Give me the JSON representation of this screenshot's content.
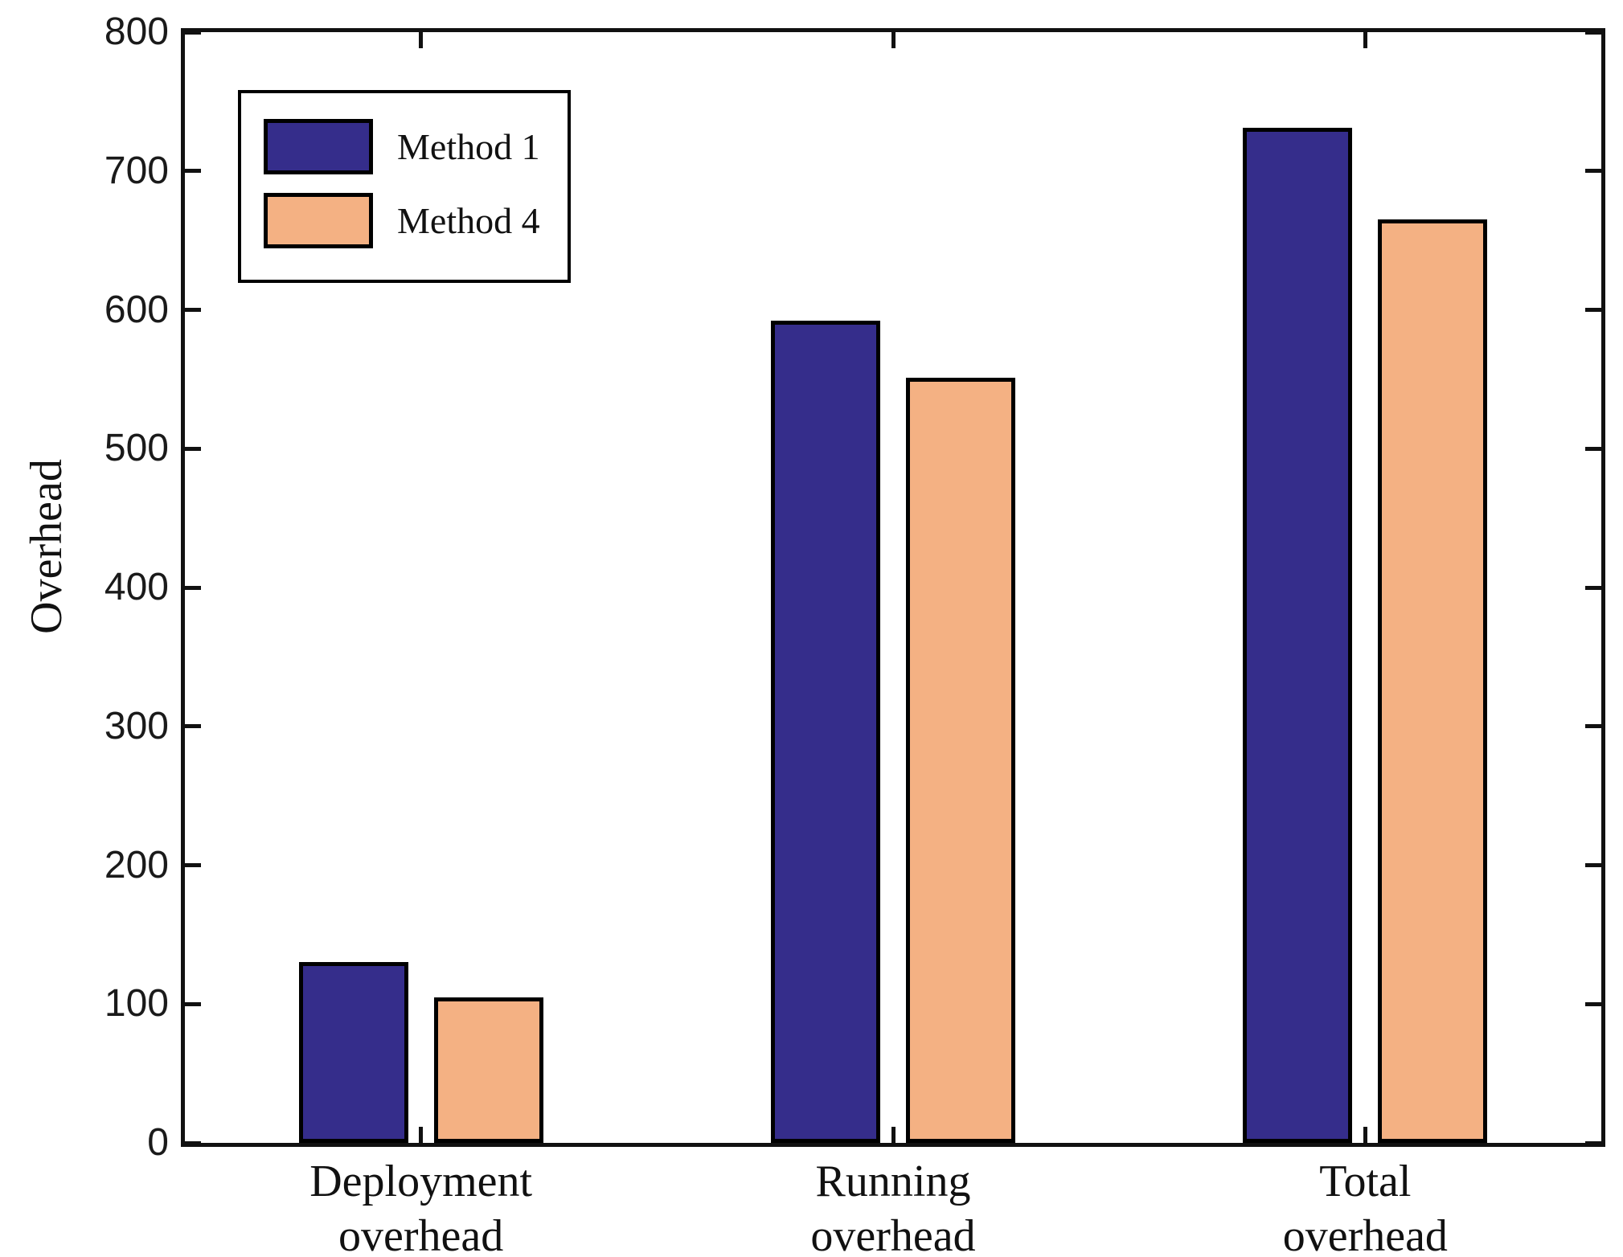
{
  "figure": {
    "background": "#ffffff"
  },
  "legend": {
    "position": "top-left",
    "entries": [
      {
        "label": "Method 1",
        "color": "#352d8b"
      },
      {
        "label": "Method 4",
        "color": "#f4b183"
      }
    ]
  },
  "chart_data": {
    "type": "bar",
    "title": "",
    "xlabel": "",
    "ylabel": "Overhead",
    "categories": [
      "Deployment\noverhead",
      "Running\noverhead",
      "Total\noverhead"
    ],
    "series": [
      {
        "name": "Method 1",
        "color": "#352d8b",
        "values": [
          130,
          592,
          731
        ]
      },
      {
        "name": "Method 4",
        "color": "#f4b183",
        "values": [
          105,
          551,
          665
        ]
      }
    ],
    "ylim": [
      0,
      800
    ],
    "yticks": [
      0,
      100,
      200,
      300,
      400,
      500,
      600,
      700,
      800
    ],
    "grid": false,
    "legend_position": "top-left",
    "bar_edge_color": "#000000",
    "frame": "box-with-mirrored-ticks"
  }
}
